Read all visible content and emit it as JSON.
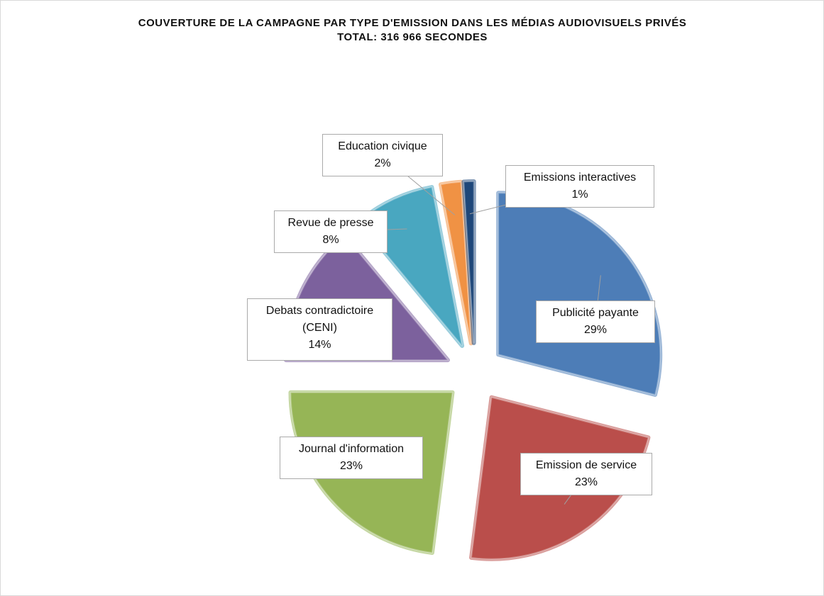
{
  "chart_data": {
    "type": "pie",
    "title": "COUVERTURE DE LA CAMPAGNE PAR TYPE D'EMISSION DANS LES MÉDIAS AUDIOVISUELS PRIVÉS",
    "subtitle": "TOTAL: 316 966  SECONDES",
    "categories": [
      "Publicité payante",
      "Emission de service",
      "Journal d'information",
      "Debats contradictoire (CENI)",
      "Revue de presse",
      "Education civique",
      "Emissions interactives"
    ],
    "values": [
      29,
      23,
      23,
      14,
      8,
      2,
      1
    ],
    "value_labels": [
      "29%",
      "23%",
      "23%",
      "14%",
      "8%",
      "2%",
      "1%"
    ],
    "colors": [
      "#4f81bd",
      "#c0504d",
      "#9bbb59",
      "#8064a2",
      "#4bacc6",
      "#f79646",
      "#1f497d"
    ]
  }
}
